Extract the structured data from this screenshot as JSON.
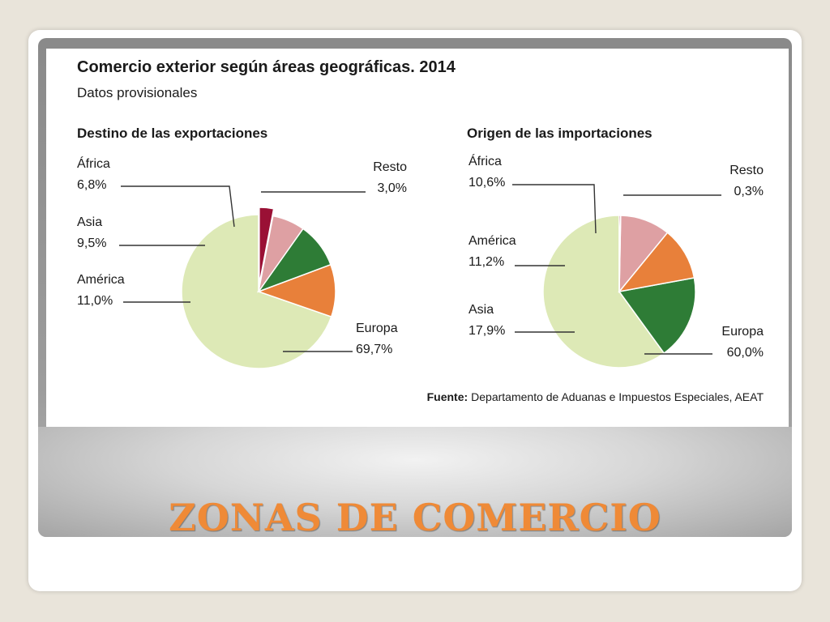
{
  "slide": {
    "title": "ZONAS DE COMERCIO"
  },
  "figure": {
    "title": "Comercio exterior según áreas geográficas. 2014",
    "subtitle": "Datos provisionales",
    "source_label": "Fuente:",
    "source_text": "Departamento de Aduanas e Impuestos Especiales, AEAT"
  },
  "chart_data": [
    {
      "type": "pie",
      "title": "Destino de las exportaciones",
      "categories": [
        "Europa",
        "América",
        "Asia",
        "África",
        "Resto"
      ],
      "values": [
        69.7,
        11.0,
        9.5,
        6.8,
        3.0
      ],
      "value_labels": [
        "69,7%",
        "11,0%",
        "9,5%",
        "6,8%",
        "3,0%"
      ],
      "colors": [
        "#dde9b6",
        "#e8803a",
        "#2e7c36",
        "#dea0a3",
        "#9a1035"
      ],
      "exploded": [
        "Resto"
      ]
    },
    {
      "type": "pie",
      "title": "Origen de las importaciones",
      "categories": [
        "Europa",
        "Asia",
        "América",
        "África",
        "Resto"
      ],
      "values": [
        60.0,
        17.9,
        11.2,
        10.6,
        0.3
      ],
      "value_labels": [
        "60,0%",
        "17,9%",
        "11,2%",
        "10,6%",
        "0,3%"
      ],
      "colors": [
        "#dde9b6",
        "#2e7c36",
        "#e8803a",
        "#dea0a3",
        "#9a1035"
      ],
      "exploded": []
    }
  ]
}
